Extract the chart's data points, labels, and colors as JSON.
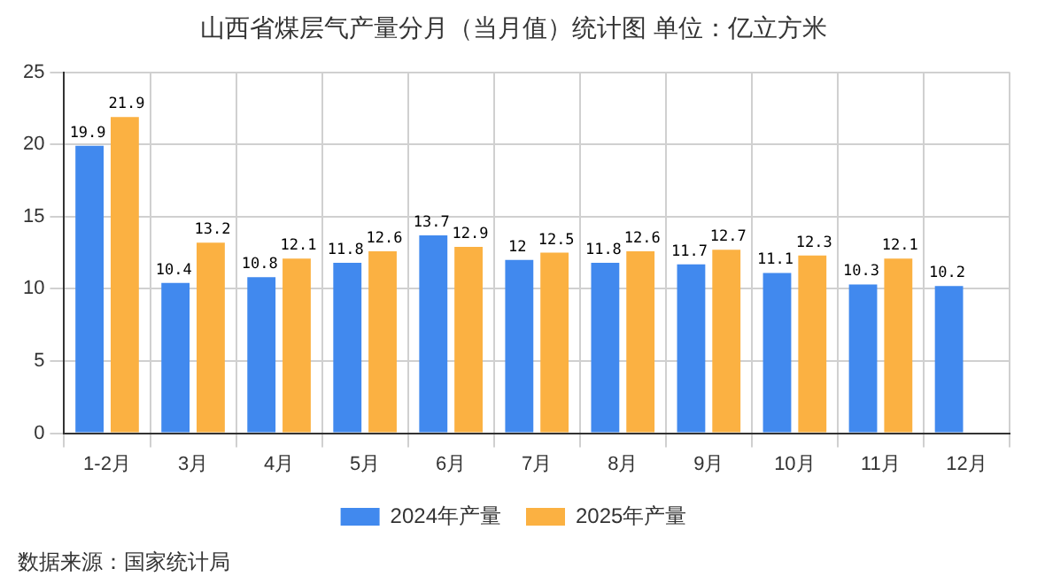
{
  "chart_data": {
    "type": "bar",
    "title": "山西省煤层气产量分月（当月值）统计图 单位：亿立方米",
    "categories": [
      "1-2月",
      "3月",
      "4月",
      "5月",
      "6月",
      "7月",
      "8月",
      "9月",
      "10月",
      "11月",
      "12月"
    ],
    "series": [
      {
        "name": "2024年产量",
        "color": "#4189ee",
        "values": [
          19.9,
          10.4,
          10.8,
          11.8,
          13.7,
          12,
          11.8,
          11.7,
          11.1,
          10.3,
          10.2
        ]
      },
      {
        "name": "2025年产量",
        "color": "#fbb142",
        "values": [
          21.9,
          13.2,
          12.1,
          12.6,
          12.9,
          12.5,
          12.6,
          12.7,
          12.3,
          12.1,
          null
        ]
      }
    ],
    "ylim": [
      0,
      25
    ],
    "yticks": [
      0,
      5,
      10,
      15,
      20,
      25
    ],
    "grid": true,
    "legend": "bottom",
    "data_labels": true,
    "annotations": [
      "数据来源：国家统计局"
    ]
  }
}
